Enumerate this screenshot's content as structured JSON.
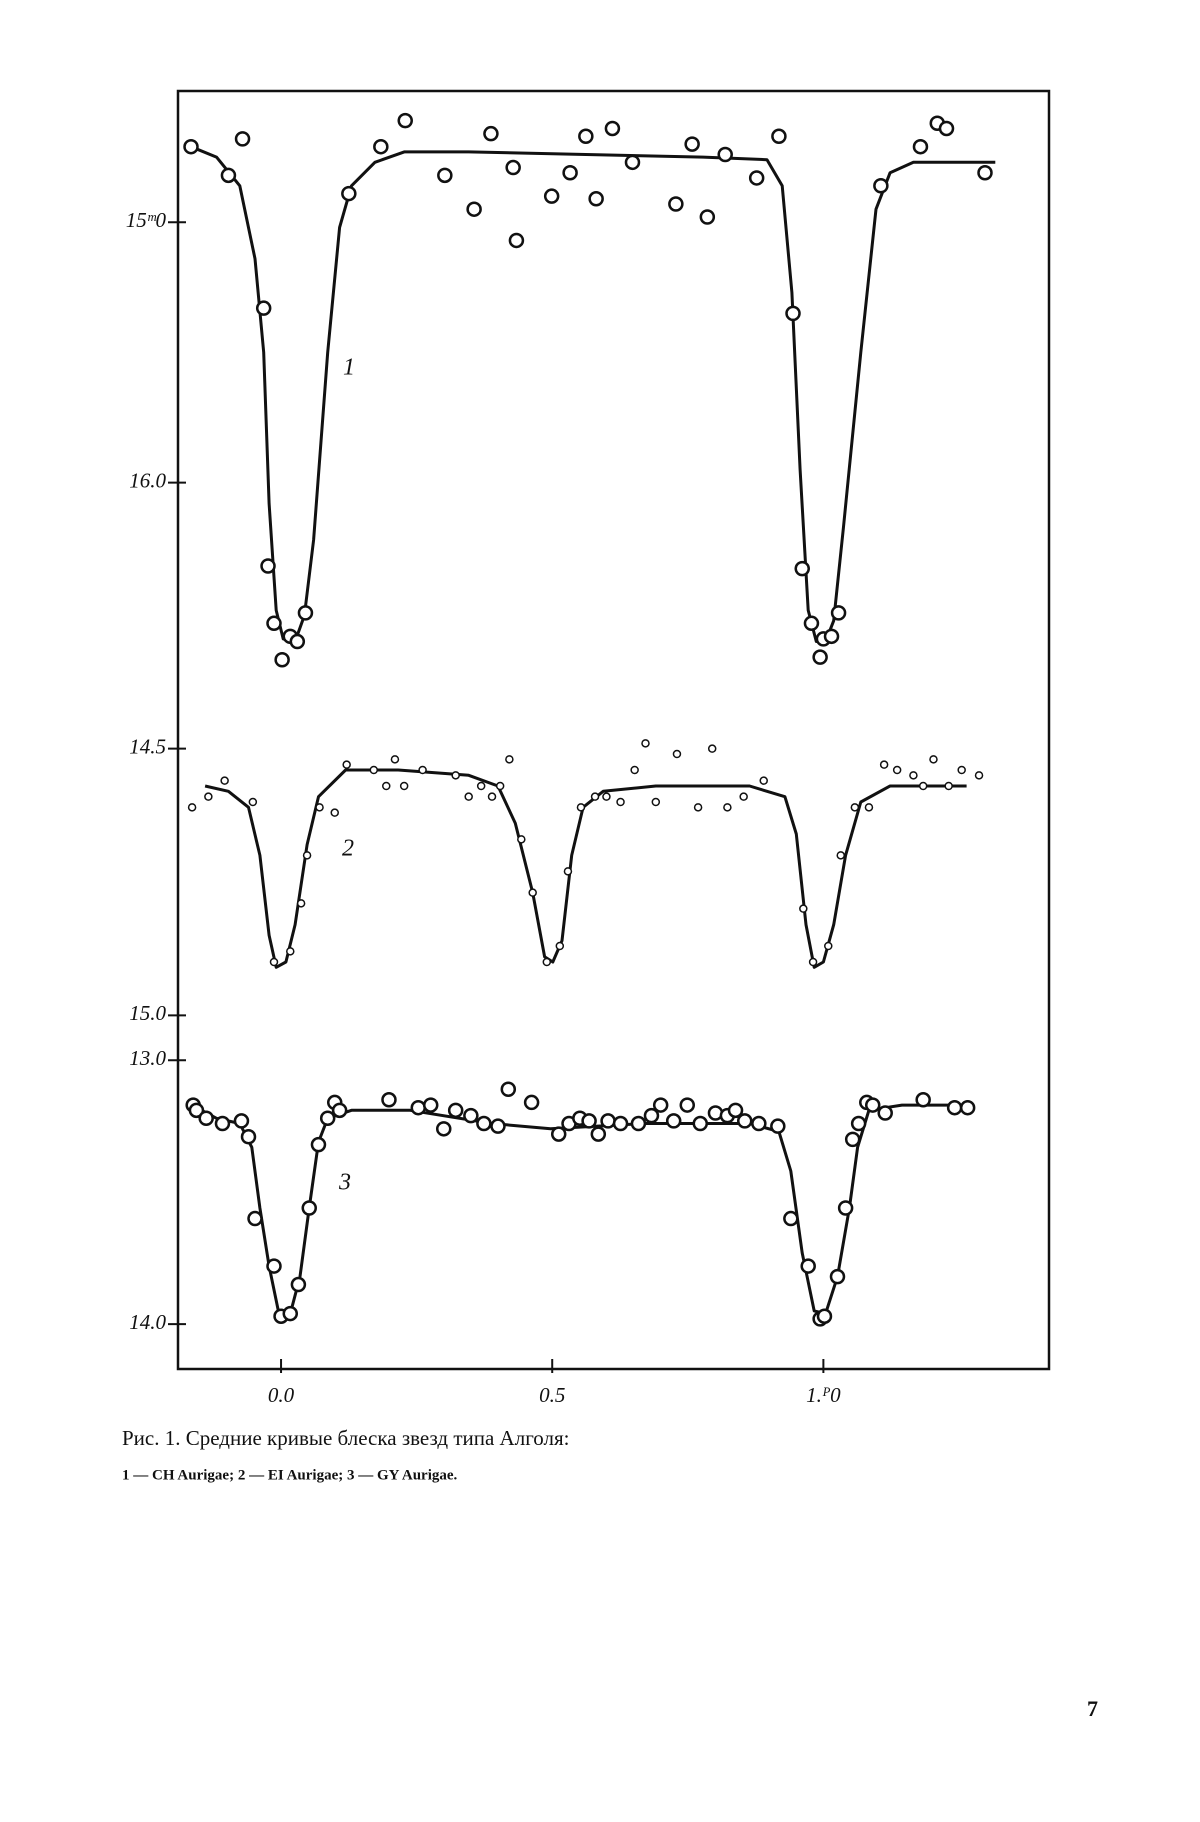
{
  "chart_data": [
    {
      "type": "scatter",
      "annotation": "1",
      "xlim": [
        -0.19,
        1.416
      ],
      "ylim": [
        14.5,
        16.75
      ],
      "yticks": [
        {
          "value": 15,
          "label": "15ᵐ0"
        },
        {
          "value": 16,
          "label": "16.0"
        }
      ],
      "points": {
        "x": [
          -0.166,
          -0.097,
          -0.071,
          -0.032,
          -0.024,
          -0.013,
          0.002,
          0.017,
          0.03,
          0.045,
          0.125,
          0.184,
          0.229,
          0.302,
          0.356,
          0.387,
          0.428,
          0.434,
          0.499,
          0.533,
          0.562,
          0.581,
          0.611,
          0.648,
          0.728,
          0.758,
          0.786,
          0.819,
          0.877,
          0.918,
          0.944,
          0.961,
          0.978,
          0.994,
          1.0,
          1.015,
          1.028,
          1.106,
          1.179,
          1.21,
          1.227,
          1.298
        ],
        "values": [
          14.71,
          14.82,
          14.68,
          15.33,
          16.32,
          16.54,
          16.68,
          16.59,
          16.61,
          16.5,
          14.89,
          14.71,
          14.61,
          14.82,
          14.95,
          14.66,
          14.79,
          15.07,
          14.9,
          14.81,
          14.67,
          14.91,
          14.64,
          14.77,
          14.93,
          14.7,
          14.98,
          14.74,
          14.83,
          14.67,
          15.35,
          16.33,
          16.54,
          16.67,
          16.6,
          16.59,
          16.5,
          14.86,
          14.71,
          14.62,
          14.64,
          14.81
        ]
      },
      "curve": {
        "x": [
          -0.166,
          -0.119,
          -0.076,
          -0.048,
          -0.032,
          -0.022,
          -0.009,
          0.004,
          0.026,
          0.043,
          0.06,
          0.086,
          0.108,
          0.13,
          0.173,
          0.227,
          0.346,
          0.562,
          0.778,
          0.896,
          0.924,
          0.942,
          0.957,
          0.972,
          0.987,
          1.004,
          1.019,
          1.037,
          1.069,
          1.097,
          1.123,
          1.166,
          1.317
        ],
        "values": [
          14.71,
          14.75,
          14.86,
          15.14,
          15.5,
          16.08,
          16.49,
          16.6,
          16.61,
          16.51,
          16.22,
          15.5,
          15.02,
          14.86,
          14.77,
          14.73,
          14.73,
          14.74,
          14.75,
          14.76,
          14.86,
          15.27,
          15.95,
          16.49,
          16.61,
          16.61,
          16.53,
          16.17,
          15.5,
          14.95,
          14.81,
          14.77,
          14.77
        ]
      }
    },
    {
      "type": "scatter",
      "annotation": "2",
      "xlim": [
        -0.19,
        1.416
      ],
      "ylim": [
        14.3,
        15.05
      ],
      "yticks": [
        14.5,
        {
          "value": 15,
          "label": "15.0"
        }
      ],
      "points": {
        "x": [
          -0.164,
          -0.134,
          -0.104,
          -0.052,
          -0.013,
          0.017,
          0.037,
          0.048,
          0.071,
          0.099,
          0.121,
          0.171,
          0.194,
          0.21,
          0.227,
          0.261,
          0.322,
          0.346,
          0.369,
          0.389,
          0.404,
          0.421,
          0.443,
          0.464,
          0.49,
          0.514,
          0.529,
          0.553,
          0.579,
          0.6,
          0.626,
          0.652,
          0.672,
          0.691,
          0.73,
          0.769,
          0.795,
          0.823,
          0.853,
          0.89,
          0.963,
          0.981,
          1.009,
          1.032,
          1.058,
          1.084,
          1.112,
          1.136,
          1.166,
          1.184,
          1.203,
          1.231,
          1.255,
          1.287
        ],
        "values": [
          14.61,
          14.59,
          14.56,
          14.6,
          14.9,
          14.88,
          14.79,
          14.7,
          14.61,
          14.62,
          14.53,
          14.54,
          14.57,
          14.52,
          14.57,
          14.54,
          14.55,
          14.59,
          14.57,
          14.59,
          14.57,
          14.52,
          14.67,
          14.77,
          14.9,
          14.87,
          14.73,
          14.61,
          14.59,
          14.59,
          14.6,
          14.54,
          14.49,
          14.6,
          14.51,
          14.61,
          14.5,
          14.61,
          14.59,
          14.56,
          14.8,
          14.9,
          14.87,
          14.7,
          14.61,
          14.61,
          14.53,
          14.54,
          14.55,
          14.57,
          14.52,
          14.57,
          14.54,
          14.55
        ]
      },
      "curve": {
        "x": [
          -0.14,
          -0.097,
          -0.06,
          -0.039,
          -0.022,
          -0.009,
          0.009,
          0.026,
          0.048,
          0.069,
          0.119,
          0.216,
          0.346,
          0.4,
          0.432,
          0.464,
          0.486,
          0.501,
          0.518,
          0.536,
          0.557,
          0.594,
          0.691,
          0.864,
          0.929,
          0.95,
          0.968,
          0.983,
          1.0,
          1.019,
          1.041,
          1.069,
          1.123,
          1.264
        ],
        "values": [
          14.57,
          14.58,
          14.61,
          14.7,
          14.85,
          14.91,
          14.9,
          14.83,
          14.68,
          14.59,
          14.54,
          14.54,
          14.55,
          14.57,
          14.64,
          14.77,
          14.89,
          14.9,
          14.86,
          14.7,
          14.61,
          14.58,
          14.57,
          14.57,
          14.59,
          14.66,
          14.83,
          14.91,
          14.9,
          14.83,
          14.7,
          14.6,
          14.57,
          14.57
        ]
      }
    },
    {
      "type": "scatter",
      "annotation": "3",
      "xlim": [
        -0.19,
        1.416
      ],
      "ylim": [
        12.95,
        14.17
      ],
      "yticks": [
        {
          "value": 13,
          "label": "13.0"
        },
        {
          "value": 14,
          "label": "14.0"
        }
      ],
      "xticks": [
        {
          "value": 0,
          "label": "0.0"
        },
        0.5,
        {
          "value": 1,
          "label": "1.ᴾ0"
        }
      ],
      "points": {
        "x": [
          -0.162,
          -0.156,
          -0.138,
          -0.108,
          -0.073,
          -0.06,
          -0.048,
          -0.013,
          0.0,
          0.017,
          0.032,
          0.052,
          0.069,
          0.086,
          0.099,
          0.108,
          0.199,
          0.253,
          0.276,
          0.3,
          0.322,
          0.35,
          0.374,
          0.4,
          0.419,
          0.462,
          0.512,
          0.531,
          0.551,
          0.568,
          0.585,
          0.603,
          0.626,
          0.659,
          0.683,
          0.7,
          0.724,
          0.749,
          0.773,
          0.801,
          0.823,
          0.838,
          0.855,
          0.881,
          0.916,
          0.94,
          0.972,
          0.994,
          1.002,
          1.026,
          1.041,
          1.054,
          1.065,
          1.08,
          1.091,
          1.114,
          1.184,
          1.242,
          1.266
        ],
        "values": [
          13.17,
          13.19,
          13.22,
          13.24,
          13.23,
          13.29,
          13.6,
          13.78,
          13.97,
          13.96,
          13.85,
          13.56,
          13.32,
          13.22,
          13.16,
          13.19,
          13.15,
          13.18,
          13.17,
          13.26,
          13.19,
          13.21,
          13.24,
          13.25,
          13.11,
          13.16,
          13.28,
          13.24,
          13.22,
          13.23,
          13.28,
          13.23,
          13.24,
          13.24,
          13.21,
          13.17,
          13.23,
          13.17,
          13.24,
          13.2,
          13.21,
          13.19,
          13.23,
          13.24,
          13.25,
          13.6,
          13.78,
          13.98,
          13.97,
          13.82,
          13.56,
          13.3,
          13.24,
          13.16,
          13.17,
          13.2,
          13.15,
          13.18,
          13.18
        ]
      },
      "curve": {
        "x": [
          -0.173,
          -0.119,
          -0.076,
          -0.054,
          -0.039,
          -0.022,
          -0.004,
          0.017,
          0.035,
          0.052,
          0.069,
          0.086,
          0.13,
          0.238,
          0.389,
          0.497,
          0.67,
          0.864,
          0.918,
          0.94,
          0.961,
          0.983,
          1.004,
          1.026,
          1.048,
          1.063,
          1.084,
          1.145,
          1.263
        ],
        "values": [
          13.16,
          13.22,
          13.24,
          13.33,
          13.56,
          13.78,
          13.96,
          13.96,
          13.82,
          13.56,
          13.31,
          13.22,
          13.19,
          13.19,
          13.24,
          13.26,
          13.24,
          13.24,
          13.27,
          13.42,
          13.73,
          13.95,
          13.96,
          13.82,
          13.56,
          13.33,
          13.19,
          13.17,
          13.17
        ]
      }
    }
  ],
  "caption": {
    "line1": "Рис. 1. Средние кривые блеска звезд типа Алголя:",
    "line2": "1 — CH Aurigae; 2 — EI Aurigae; 3 — GY Aurigae."
  },
  "page_number": "7"
}
